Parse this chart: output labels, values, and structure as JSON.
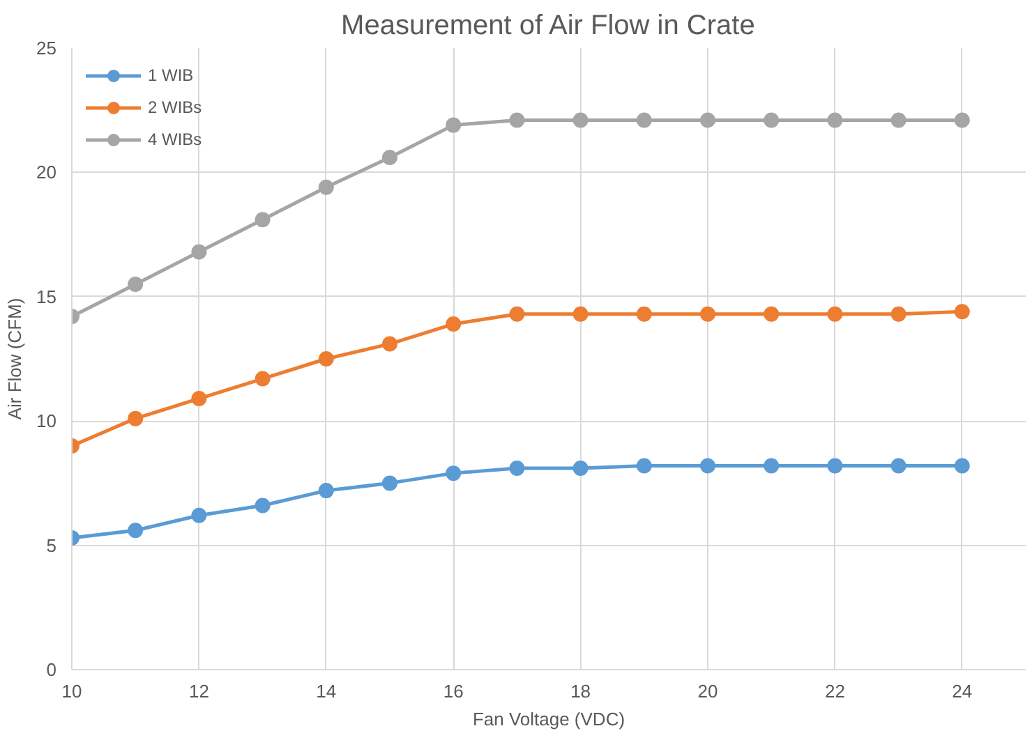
{
  "chart_data": {
    "type": "line",
    "title": "Measurement of Air Flow in Crate",
    "xlabel": "Fan Voltage (VDC)",
    "ylabel": "Air Flow (CFM)",
    "x": [
      10,
      11,
      12,
      13,
      14,
      15,
      16,
      17,
      18,
      19,
      20,
      21,
      22,
      23,
      24
    ],
    "series": [
      {
        "name": "1 WIB",
        "color": "#5b9bd5",
        "values": [
          5.3,
          5.6,
          6.2,
          6.6,
          7.2,
          7.5,
          7.9,
          8.1,
          8.1,
          8.2,
          8.2,
          8.2,
          8.2,
          8.2,
          8.2
        ]
      },
      {
        "name": "2 WIBs",
        "color": "#ed7d31",
        "values": [
          9.0,
          10.1,
          10.9,
          11.7,
          12.5,
          13.1,
          13.9,
          14.3,
          14.3,
          14.3,
          14.3,
          14.3,
          14.3,
          14.3,
          14.4
        ]
      },
      {
        "name": "4 WIBs",
        "color": "#a5a5a5",
        "values": [
          14.2,
          15.5,
          16.8,
          18.1,
          19.4,
          20.6,
          21.9,
          22.1,
          22.1,
          22.1,
          22.1,
          22.1,
          22.1,
          22.1,
          22.1
        ]
      }
    ],
    "xlim": [
      10,
      25
    ],
    "xticks": [
      10,
      12,
      14,
      16,
      18,
      20,
      22,
      24
    ],
    "ylim": [
      0,
      25
    ],
    "yticks": [
      0,
      5,
      10,
      15,
      20,
      25
    ],
    "grid": true,
    "legend": "top left",
    "marker": "circle",
    "line_style": "solid"
  }
}
